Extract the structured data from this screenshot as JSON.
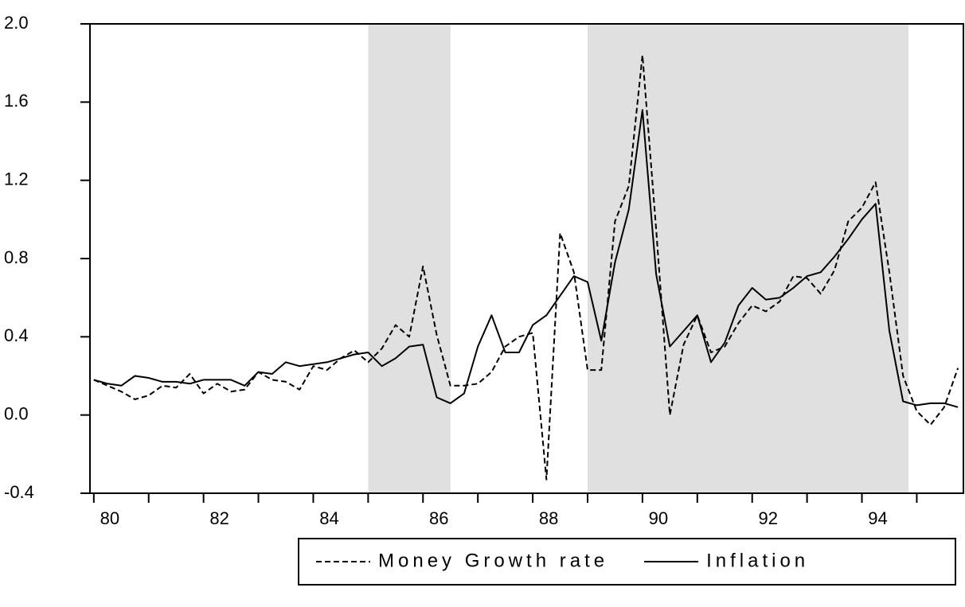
{
  "chart_data": {
    "type": "line",
    "x": [
      1980,
      1980.25,
      1980.5,
      1980.75,
      1981,
      1981.25,
      1981.5,
      1981.75,
      1982,
      1982.25,
      1982.5,
      1982.75,
      1983,
      1983.25,
      1983.5,
      1983.75,
      1984,
      1984.25,
      1984.5,
      1984.75,
      1985,
      1985.25,
      1985.5,
      1985.75,
      1986,
      1986.25,
      1986.5,
      1986.75,
      1987,
      1987.25,
      1987.5,
      1987.75,
      1988,
      1988.25,
      1988.5,
      1988.75,
      1989,
      1989.25,
      1989.5,
      1989.75,
      1990,
      1990.25,
      1990.5,
      1990.75,
      1991,
      1991.25,
      1991.5,
      1991.75,
      1992,
      1992.25,
      1992.5,
      1992.75,
      1993,
      1993.25,
      1993.5,
      1993.75,
      1994,
      1994.25,
      1994.5,
      1994.75,
      1995,
      1995.25,
      1995.5,
      1995.75
    ],
    "series": [
      {
        "name": "Money Growth rate",
        "color": "#000000",
        "dash": true,
        "values": [
          0.18,
          0.15,
          0.12,
          0.08,
          0.1,
          0.15,
          0.14,
          0.21,
          0.11,
          0.16,
          0.12,
          0.13,
          0.22,
          0.18,
          0.17,
          0.13,
          0.25,
          0.23,
          0.29,
          0.33,
          0.27,
          0.34,
          0.46,
          0.4,
          0.76,
          0.41,
          0.15,
          0.15,
          0.16,
          0.22,
          0.35,
          0.4,
          0.42,
          -0.33,
          0.93,
          0.73,
          0.23,
          0.23,
          0.99,
          1.17,
          1.84,
          0.95,
          0.0,
          0.36,
          0.51,
          0.32,
          0.35,
          0.47,
          0.56,
          0.53,
          0.58,
          0.71,
          0.7,
          0.62,
          0.74,
          0.99,
          1.06,
          1.19,
          0.73,
          0.2,
          0.02,
          -0.05,
          0.04,
          0.24
        ]
      },
      {
        "name": "Inflation",
        "color": "#000000",
        "dash": false,
        "values": [
          0.18,
          0.16,
          0.15,
          0.2,
          0.19,
          0.17,
          0.17,
          0.16,
          0.18,
          0.18,
          0.18,
          0.15,
          0.22,
          0.21,
          0.27,
          0.25,
          0.26,
          0.27,
          0.29,
          0.31,
          0.32,
          0.25,
          0.29,
          0.35,
          0.36,
          0.09,
          0.06,
          0.11,
          0.35,
          0.51,
          0.32,
          0.32,
          0.46,
          0.51,
          0.61,
          0.71,
          0.68,
          0.38,
          0.78,
          1.05,
          1.56,
          0.72,
          0.35,
          0.43,
          0.51,
          0.27,
          0.37,
          0.56,
          0.65,
          0.59,
          0.6,
          0.65,
          0.71,
          0.73,
          0.81,
          0.9,
          1.0,
          1.08,
          0.43,
          0.07,
          0.05,
          0.06,
          0.06,
          0.04
        ]
      }
    ],
    "shaded_periods": [
      [
        1985.0,
        1986.5
      ],
      [
        1989.0,
        1994.85
      ]
    ],
    "shade_color": "#e0e0e0",
    "xlim": [
      1979.93,
      1995.85
    ],
    "xticks": [
      {
        "value": 1980,
        "label": "80"
      },
      {
        "value": 1982,
        "label": "82"
      },
      {
        "value": 1984,
        "label": "84"
      },
      {
        "value": 1986,
        "label": "86"
      },
      {
        "value": 1988,
        "label": "88"
      },
      {
        "value": 1990,
        "label": "90"
      },
      {
        "value": 1992,
        "label": "92"
      },
      {
        "value": 1994,
        "label": "94"
      }
    ],
    "xminor_ticks": [
      1981,
      1983,
      1985,
      1987,
      1989,
      1991,
      1993,
      1995
    ],
    "ylim": [
      -0.4,
      2.0
    ],
    "yticks": [
      {
        "value": -0.4,
        "label": "-0.4"
      },
      {
        "value": 0.0,
        "label": "0.0"
      },
      {
        "value": 0.4,
        "label": "0.4"
      },
      {
        "value": 0.8,
        "label": "0.8"
      },
      {
        "value": 1.2,
        "label": "1.2"
      },
      {
        "value": 1.6,
        "label": "1.6"
      },
      {
        "value": 2.0,
        "label": "2.0"
      }
    ],
    "legend": "bottom-right"
  }
}
